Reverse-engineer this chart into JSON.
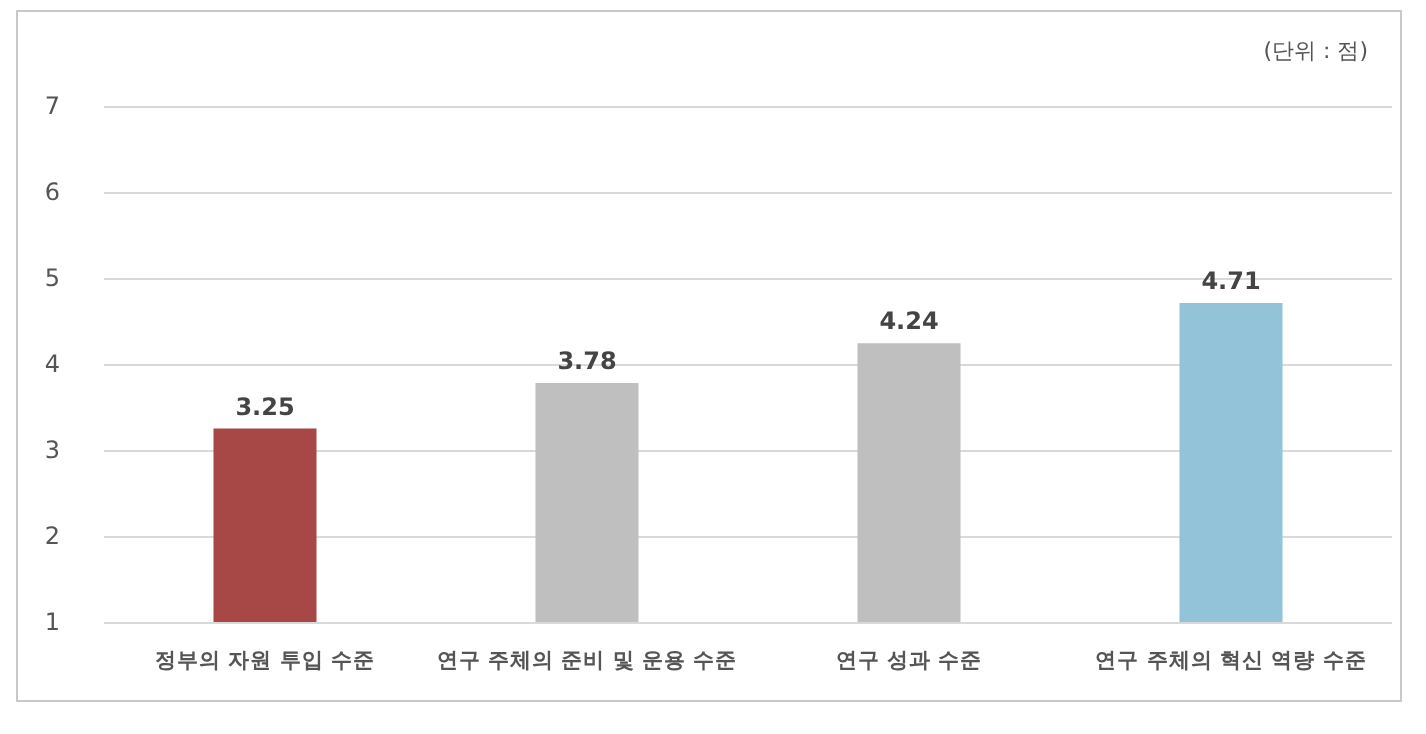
{
  "chart_data": {
    "type": "bar",
    "categories": [
      "정부의 자원 투입 수준",
      "연구 주체의 준비 및 운용 수준",
      "연구 성과 수준",
      "연구 주체의 혁신 역량 수준"
    ],
    "values": [
      3.25,
      3.78,
      4.24,
      4.71
    ],
    "colors": [
      "#a84846",
      "#bfbfbf",
      "#bfbfbf",
      "#92c3d9"
    ],
    "ylim": [
      1,
      7
    ],
    "yticks": [
      1,
      2,
      3,
      4,
      5,
      6,
      7
    ],
    "grid": "y",
    "data_labels": true,
    "annotations": [
      "(단위 : 점)"
    ]
  }
}
